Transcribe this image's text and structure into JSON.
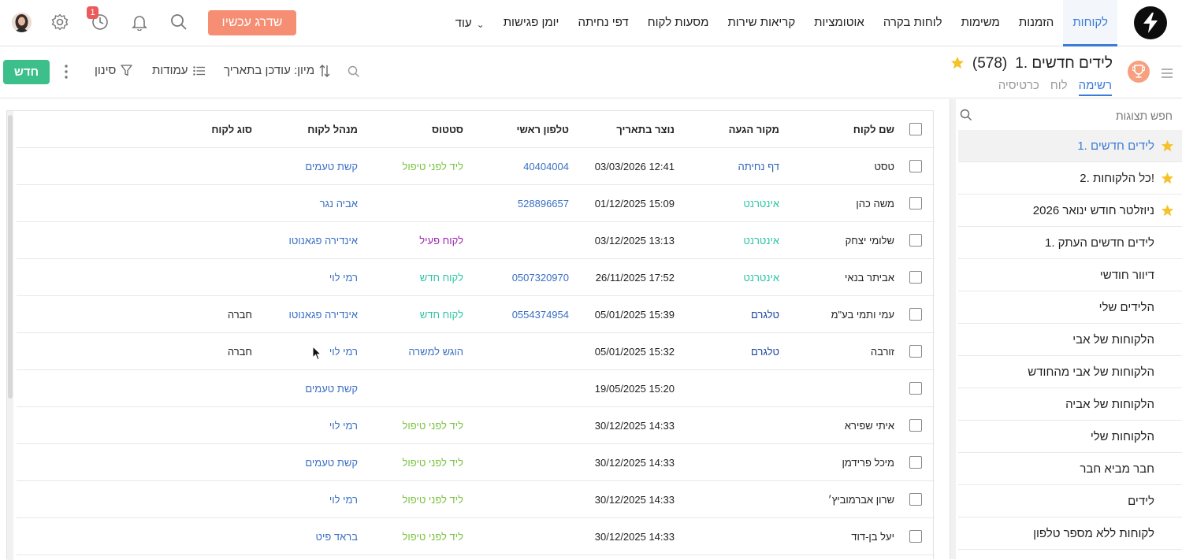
{
  "colors": {
    "accent": "#3a7bd5",
    "upgrade": "#f58e73",
    "new_button": "#3cbf8a",
    "badge": "#ec5b5b",
    "star": "#f5c22b",
    "source_internet": "#2ec4a6",
    "source_landing": "#2f63b8",
    "source_telegram": "#1a44a0",
    "status_lead": "#7cc242",
    "status_new_customer": "#2ec4a6",
    "status_active": "#9c27b0",
    "status_submitted": "#3a6fc4"
  },
  "topnav": {
    "items": [
      {
        "label": "לקוחות",
        "active": true
      },
      {
        "label": "הזמנות"
      },
      {
        "label": "משימות"
      },
      {
        "label": "לוחות בקרה"
      },
      {
        "label": "אוטומציות"
      },
      {
        "label": "קריאות שירות"
      },
      {
        "label": "מסעות לקוח"
      },
      {
        "label": "דפי נחיתה"
      },
      {
        "label": "יומן פגישות"
      },
      {
        "label": "עוד"
      }
    ],
    "upgrade_label": "שדרג עכשיו",
    "notification_badge": "1",
    "icons": [
      "search-icon",
      "bell-icon",
      "history-icon",
      "gear-icon",
      "user-avatar"
    ]
  },
  "view": {
    "title": "1. לידים חדשים",
    "count": "(578)",
    "tabs": [
      "רשימה",
      "לוח",
      "כרטיסיה"
    ],
    "active_tab": "רשימה",
    "new_label": "חדש",
    "filter_label": "סינון",
    "columns_label": "עמודות",
    "sort_label": "מיון: עודכן בתאריך"
  },
  "sidebar": {
    "search_placeholder": "חפש תצוגות",
    "items": [
      {
        "label": "1. לידים חדשים",
        "starred": true,
        "active": true
      },
      {
        "label": "2. כל הלקוחות!",
        "starred": true
      },
      {
        "label": "ניוזלטר חודש ינואר 2026",
        "starred": true
      },
      {
        "label": "1. לידים חדשים העתק"
      },
      {
        "label": "דיוור חודשי"
      },
      {
        "label": "הלידים שלי"
      },
      {
        "label": "הלקוחות של אבי"
      },
      {
        "label": "הלקוחות של אבי מהחודש"
      },
      {
        "label": "הלקוחות של אביה"
      },
      {
        "label": "הלקוחות שלי"
      },
      {
        "label": "חבר מביא חבר"
      },
      {
        "label": "לידים"
      },
      {
        "label": "לקוחות ללא מספר טלפון"
      }
    ]
  },
  "table": {
    "headers": {
      "name": "שם לקוח",
      "source": "מקור הגעה",
      "created": "נוצר בתאריך",
      "phone": "טלפון ראשי",
      "status": "סטטוס",
      "manager": "מנהל לקוח",
      "type": "סוג לקוח"
    },
    "rows": [
      {
        "name": "טסט",
        "source": "דף נחיתה",
        "source_color": "#2f63b8",
        "created": "03/03/2026 12:41",
        "phone": "40404004",
        "status": "ליד לפני טיפול",
        "status_color": "#7cc242",
        "manager": "קשת טעמים",
        "type": ""
      },
      {
        "name": "משה כהן",
        "source": "אינטרנט",
        "source_color": "#2ec4a6",
        "created": "01/12/2025 15:09",
        "phone": "528896657",
        "status": "",
        "status_color": "#7cc242",
        "manager": "אביה נגר",
        "type": ""
      },
      {
        "name": "שלומי יצחק",
        "source": "אינטרנט",
        "source_color": "#2ec4a6",
        "created": "03/12/2025 13:13",
        "phone": "",
        "status": "לקוח פעיל",
        "status_color": "#9c27b0",
        "manager": "אינדירה פגאנוטו",
        "type": ""
      },
      {
        "name": "אביתר בנאי",
        "source": "אינטרנט",
        "source_color": "#2ec4a6",
        "created": "26/11/2025 17:52",
        "phone": "0507320970",
        "status": "לקוח חדש",
        "status_color": "#2ec4a6",
        "manager": "רמי לוי",
        "type": ""
      },
      {
        "name": "עמי ותמי בע\"מ",
        "source": "טלגרם",
        "source_color": "#1a44a0",
        "created": "05/01/2025 15:39",
        "phone": "0554374954",
        "status": "לקוח חדש",
        "status_color": "#2ec4a6",
        "manager": "אינדירה פגאנוטו",
        "type": "חברה"
      },
      {
        "name": "זורבה",
        "source": "טלגרם",
        "source_color": "#1a44a0",
        "created": "05/01/2025 15:32",
        "phone": "",
        "status": "הוגש למשרה",
        "status_color": "#3a6fc4",
        "manager": "רמי לוי",
        "type": "חברה"
      },
      {
        "name": "",
        "source": "",
        "source_color": "#2ec4a6",
        "created": "19/05/2025 15:20",
        "phone": "",
        "status": "",
        "status_color": "#7cc242",
        "manager": "קשת טעמים",
        "type": ""
      },
      {
        "name": "איתי שפירא",
        "source": "",
        "source_color": "#2ec4a6",
        "created": "30/12/2025 14:33",
        "phone": "",
        "status": "ליד לפני טיפול",
        "status_color": "#7cc242",
        "manager": "רמי לוי",
        "type": ""
      },
      {
        "name": "מיכל פרידמן",
        "source": "",
        "source_color": "#2ec4a6",
        "created": "30/12/2025 14:33",
        "phone": "",
        "status": "ליד לפני טיפול",
        "status_color": "#7cc242",
        "manager": "קשת טעמים",
        "type": ""
      },
      {
        "name": "שרון אברמוביץ׳",
        "source": "",
        "source_color": "#2ec4a6",
        "created": "30/12/2025 14:33",
        "phone": "",
        "status": "ליד לפני טיפול",
        "status_color": "#7cc242",
        "manager": "רמי לוי",
        "type": ""
      },
      {
        "name": "יעל בן-דוד",
        "source": "",
        "source_color": "#2ec4a6",
        "created": "30/12/2025 14:33",
        "phone": "",
        "status": "ליד לפני טיפול",
        "status_color": "#7cc242",
        "manager": "בראד פיט",
        "type": ""
      }
    ]
  }
}
